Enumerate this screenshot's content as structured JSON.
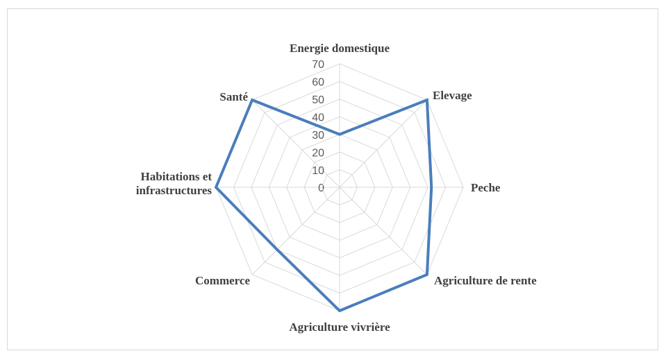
{
  "chart_data": {
    "type": "radar",
    "categories": [
      "Energie domestique",
      "Elevage",
      "Peche",
      "Agriculture de rente",
      "Agriculture vivrière",
      "Commerce",
      "Habitations et infrastructures",
      "Santé"
    ],
    "series": [
      {
        "color": "#4a7ebb",
        "values": [
          30,
          70,
          52,
          70,
          70,
          50,
          70,
          70
        ]
      }
    ],
    "rlim": [
      0,
      70
    ],
    "rticks": [
      0,
      10,
      20,
      30,
      40,
      50,
      60,
      70
    ],
    "grid": true
  }
}
